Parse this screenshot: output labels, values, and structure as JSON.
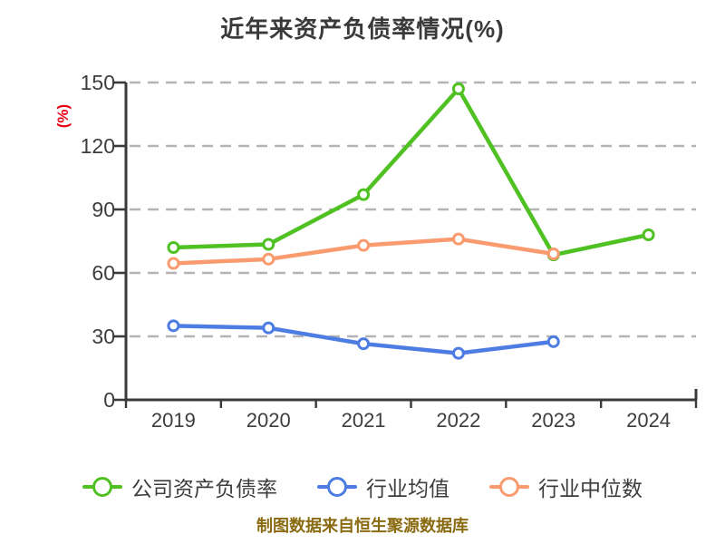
{
  "title": "近年来资产负债率情况(%)",
  "footer": "制图数据来自恒生聚源数据库",
  "colors": {
    "background": "#ffffff",
    "title": "#3a3a3a",
    "axis": "#3a3a3a",
    "grid": "#b3b3b3",
    "tick_label": "#3d3d3d",
    "legend_text": "#3d3d3d",
    "ylabel": "#e60012",
    "footer": "#8a6b11"
  },
  "chart_data": {
    "type": "line",
    "title": "近年来资产负债率情况(%)",
    "xlabel": "",
    "ylabel": "(%)",
    "x": [
      "2019",
      "2020",
      "2021",
      "2022",
      "2023",
      "2024"
    ],
    "series": [
      {
        "name": "公司资产负债率",
        "color": "#4fc122",
        "values": [
          72,
          73.5,
          97,
          147,
          68.5,
          78
        ]
      },
      {
        "name": "行业均值",
        "color": "#4d7ce2",
        "values": [
          35,
          34,
          26.5,
          22,
          27.5,
          null
        ]
      },
      {
        "name": "行业中位数",
        "color": "#f99b6e",
        "values": [
          64.5,
          66.5,
          73,
          76,
          69,
          null
        ]
      }
    ],
    "ylim": [
      0,
      150
    ],
    "yticks": [
      0,
      30,
      60,
      90,
      120,
      150
    ],
    "grid": "horizontal dashed",
    "marker": "white-filled circle with colored ring",
    "legend_position": "bottom"
  }
}
